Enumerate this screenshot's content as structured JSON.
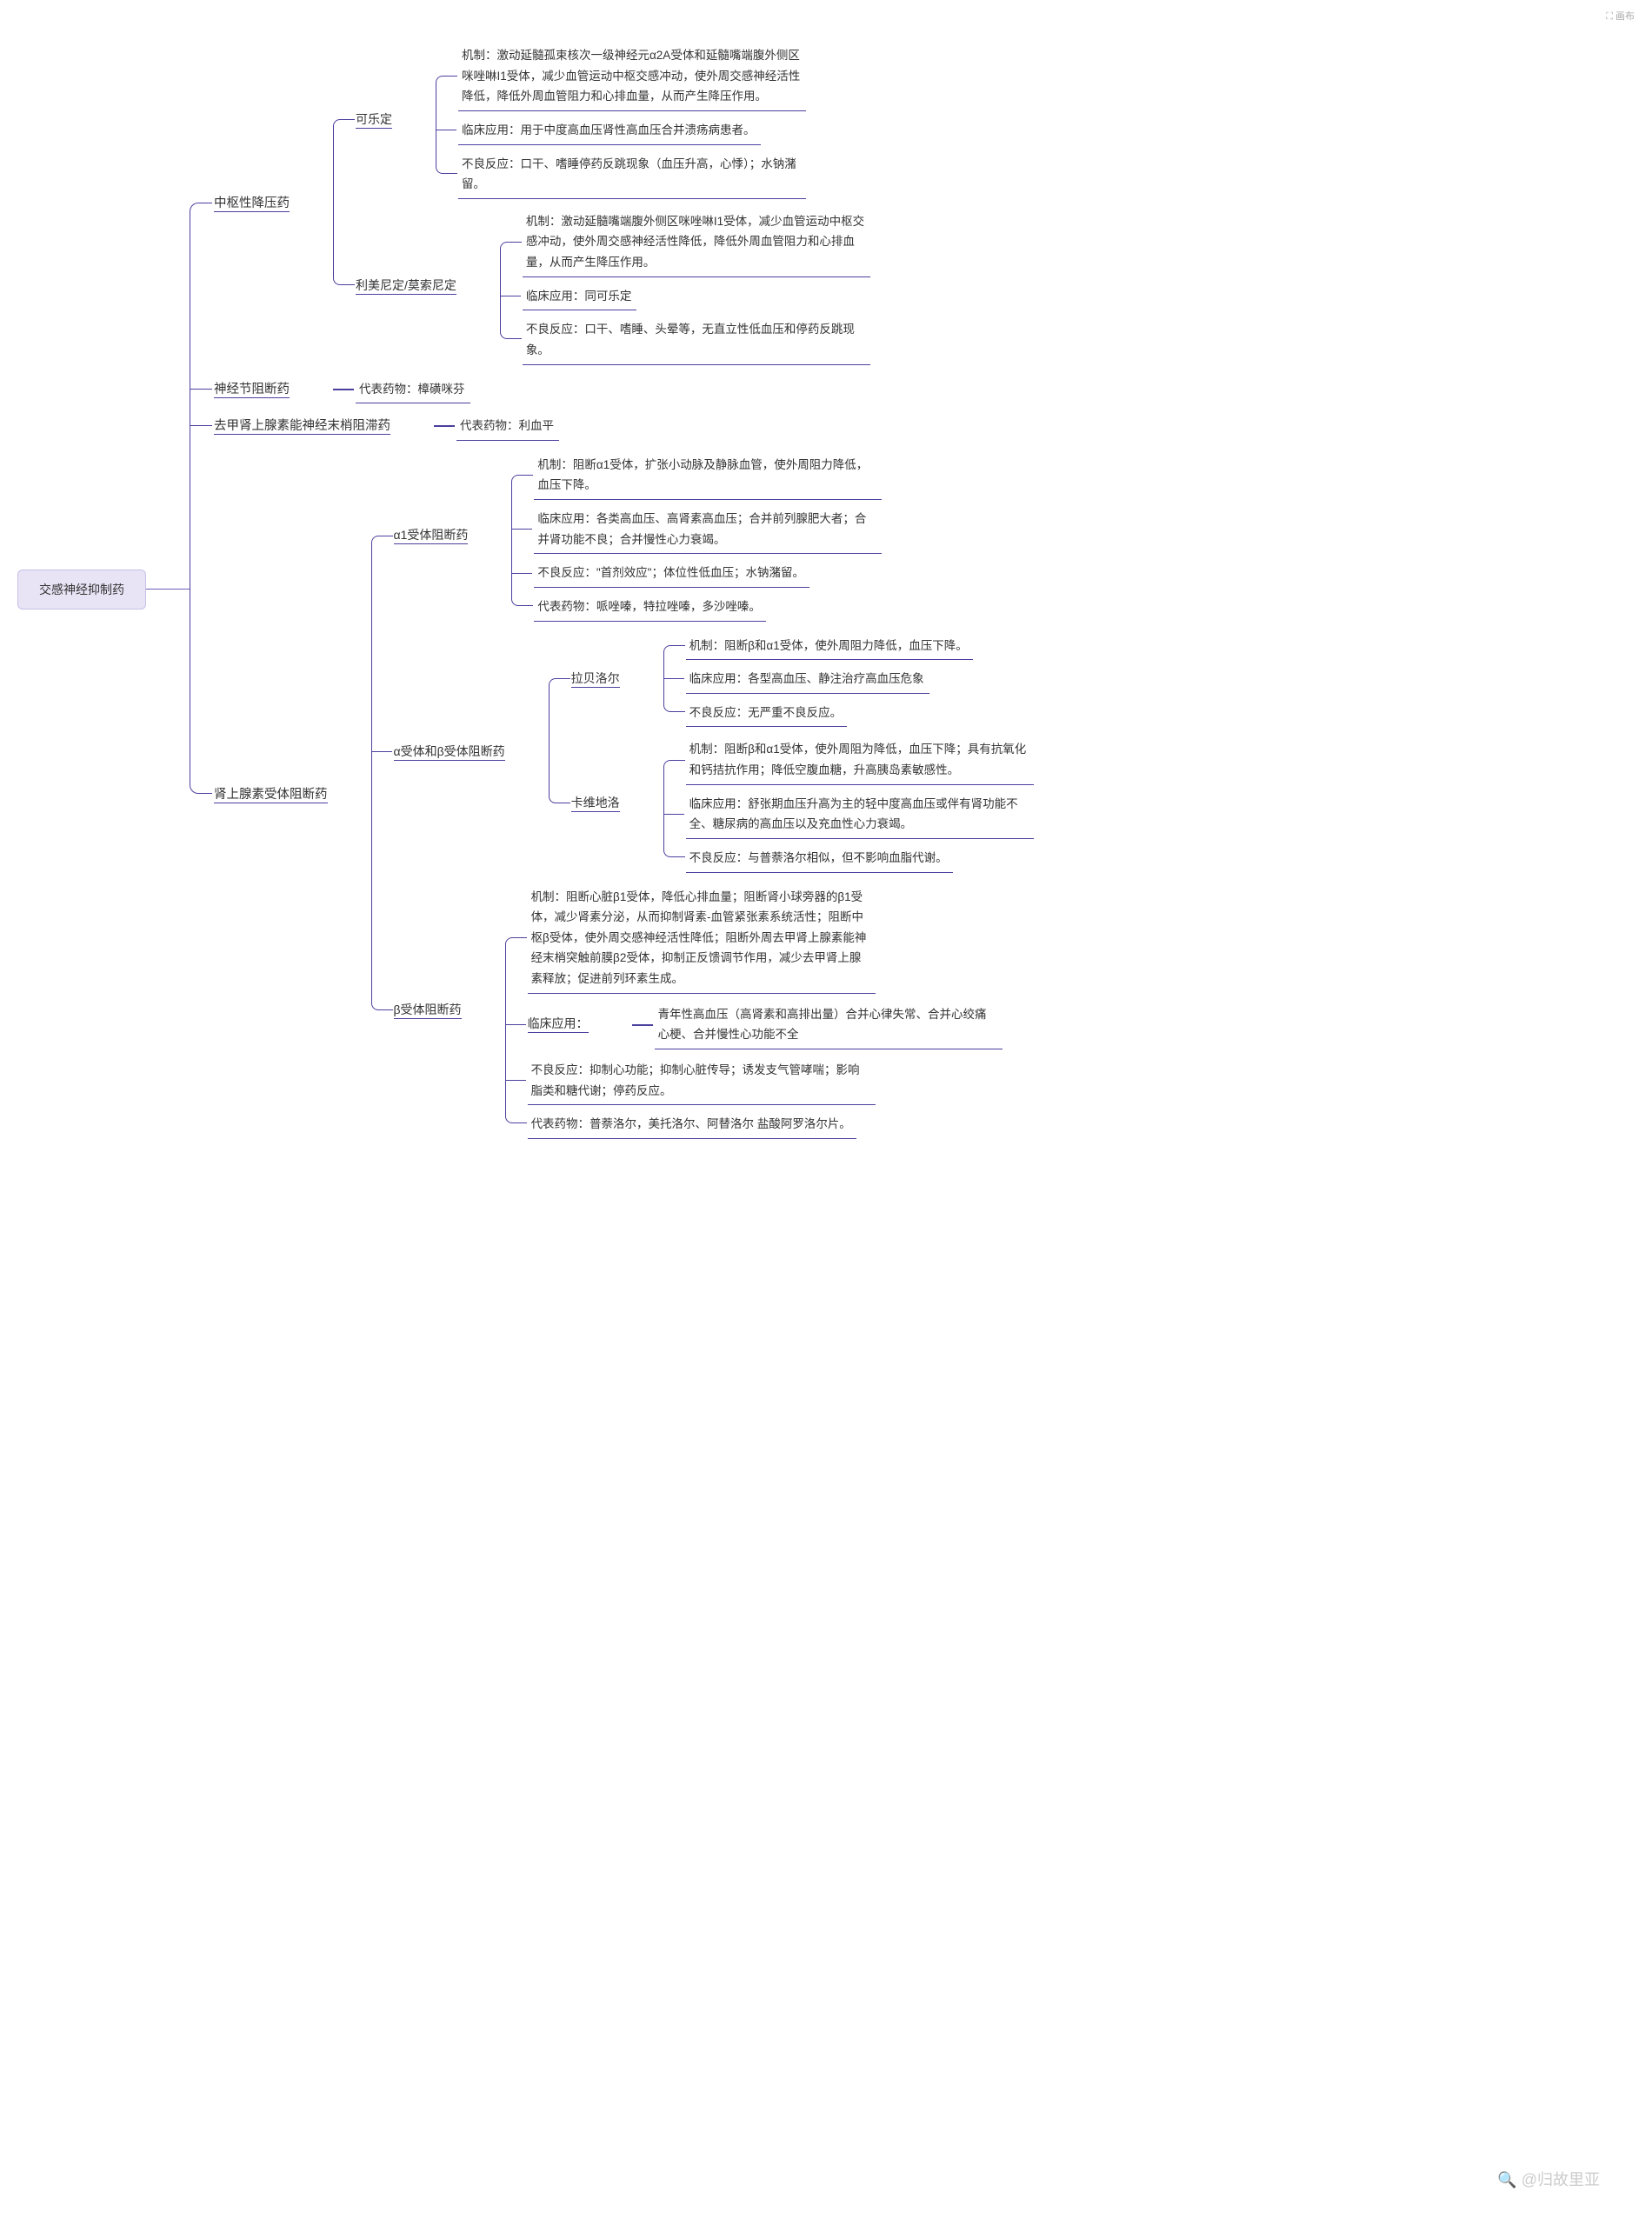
{
  "colors": {
    "root_border": "#c3b8e6",
    "root_bg": "#e8e3f5",
    "line": "#4a3f9e",
    "text": "#333333",
    "watermark": "#cccccc"
  },
  "top_right_label": "⛶ 画布",
  "watermark": "🔍 @归故里亚",
  "root": "交感神经抑制药",
  "tree": [
    {
      "label": "中枢性降压药",
      "children": [
        {
          "label": "可乐定",
          "children": [
            {
              "leaf": "机制：激动延髓孤束核次一级神经元α2A受体和延髓嘴端腹外侧区咪唑啉I1受体，减少血管运动中枢交感冲动，使外周交感神经活性降低，降低外周血管阻力和心排血量，从而产生降压作用。"
            },
            {
              "leaf": "临床应用：用于中度高血压肾性高血压合并溃疡病患者。"
            },
            {
              "leaf": "不良反应：口干、嗜睡停药反跳现象（血压升高，心悸）；水钠潴留。"
            }
          ]
        },
        {
          "label": "利美尼定/莫索尼定",
          "children": [
            {
              "leaf": "机制：激动延髓嘴端腹外侧区咪唑啉I1受体，减少血管运动中枢交感冲动，使外周交感神经活性降低，降低外周血管阻力和心排血量，从而产生降压作用。"
            },
            {
              "leaf": "临床应用：同可乐定"
            },
            {
              "leaf": "不良反应：口干、嗜睡、头晕等，无直立性低血压和停药反跳现象。"
            }
          ]
        }
      ]
    },
    {
      "label": "神经节阻断药",
      "children": [
        {
          "leaf": "代表药物：樟磺咪芬"
        }
      ]
    },
    {
      "label": "去甲肾上腺素能神经末梢阻滞药",
      "children": [
        {
          "leaf": "代表药物：利血平"
        }
      ]
    },
    {
      "label": "肾上腺素受体阻断药",
      "children": [
        {
          "label": "α1受体阻断药",
          "children": [
            {
              "leaf": "机制：阻断α1受体，扩张小动脉及静脉血管，使外周阻力降低，血压下降。"
            },
            {
              "leaf": "临床应用：各类高血压、高肾素高血压；合并前列腺肥大者；合并肾功能不良；合并慢性心力衰竭。"
            },
            {
              "leaf": "不良反应：\"首剂效应\"；体位性低血压；水钠潴留。"
            },
            {
              "leaf": "代表药物：哌唑嗪，特拉唑嗪，多沙唑嗪。"
            }
          ]
        },
        {
          "label": "α受体和β受体阻断药",
          "children": [
            {
              "label": "拉贝洛尔",
              "children": [
                {
                  "leaf": "机制：阻断β和α1受体，使外周阻力降低，血压下降。"
                },
                {
                  "leaf": "临床应用：各型高血压、静注治疗高血压危象"
                },
                {
                  "leaf": "不良反应：无严重不良反应。"
                }
              ]
            },
            {
              "label": "卡维地洛",
              "children": [
                {
                  "leaf": "机制：阻断β和α1受体，使外周阻为降低，血压下降；具有抗氧化和钙拮抗作用；降低空腹血糖，升高胰岛素敏感性。"
                },
                {
                  "leaf": "临床应用：舒张期血压升高为主的轻中度高血压或伴有肾功能不全、糖尿病的高血压以及充血性心力衰竭。"
                },
                {
                  "leaf": "不良反应：与普萘洛尔相似，但不影响血脂代谢。"
                }
              ]
            }
          ]
        },
        {
          "label": "β受体阻断药",
          "children": [
            {
              "leaf": "机制：阻断心脏β1受体，降低心排血量；阻断肾小球旁器的β1受体，减少肾素分泌，从而抑制肾素-血管紧张素系统活性；阻断中枢β受体，使外周交感神经活性降低；阻断外周去甲肾上腺素能神经末梢突触前膜β2受体，抑制正反馈调节作用，减少去甲肾上腺素释放；促进前列环素生成。"
            },
            {
              "label": "临床应用：",
              "children": [
                {
                  "leaf": "青年性高血压（高肾素和高排出量）合并心律失常、合并心绞痛 心梗、合并慢性心功能不全"
                }
              ]
            },
            {
              "leaf": "不良反应：抑制心功能；抑制心脏传导；诱发支气管哮喘；影响脂类和糖代谢；停药反应。"
            },
            {
              "leaf": "代表药物：普萘洛尔，美托洛尔、阿替洛尔 盐酸阿罗洛尔片。"
            }
          ]
        }
      ]
    }
  ]
}
